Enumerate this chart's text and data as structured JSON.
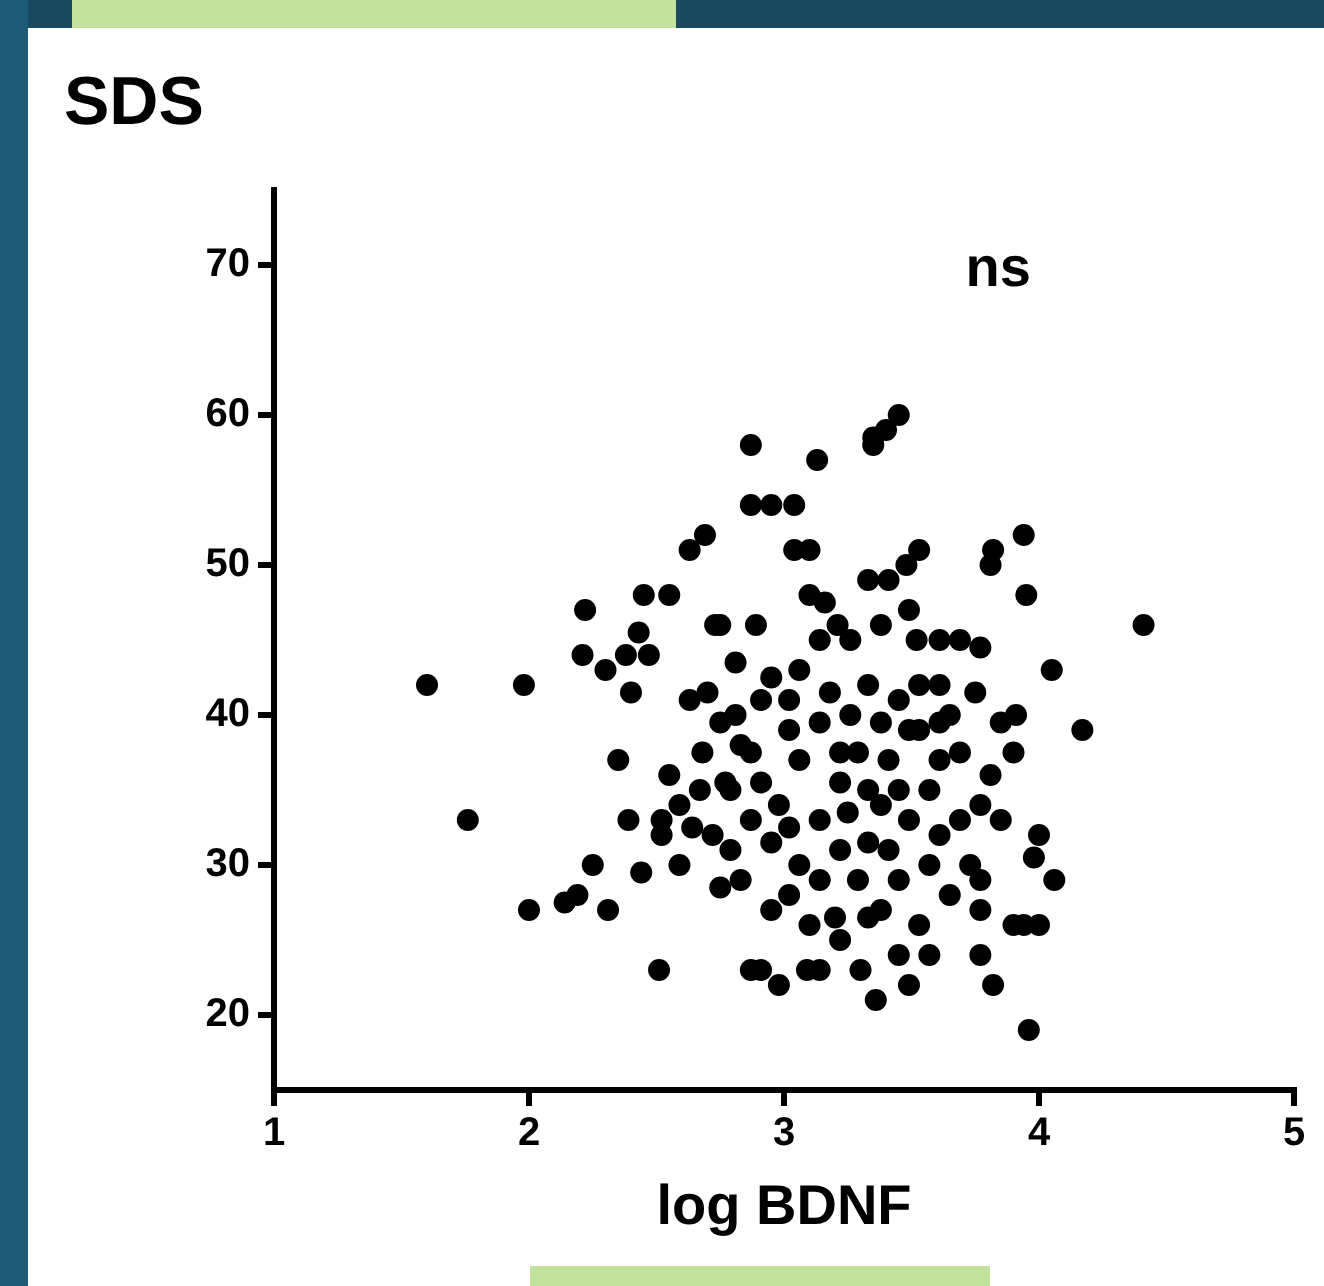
{
  "chart_data": {
    "type": "scatter",
    "ylabel": "SDS",
    "xlabel": "log BDNF",
    "xlim": [
      1,
      5
    ],
    "xticks": [
      1,
      2,
      3,
      4,
      5
    ],
    "ylim": [
      15,
      75
    ],
    "yticks": [
      20,
      30,
      40,
      50,
      60,
      70
    ],
    "annotations": [
      "ns"
    ],
    "marker": "circle",
    "grid": false,
    "legend": false,
    "series": [
      {
        "color": "#000000",
        "x": [
          1.6,
          1.76,
          1.98,
          2.0,
          2.14,
          2.19,
          2.25,
          2.31,
          2.22,
          2.21,
          2.3,
          2.38,
          2.47,
          2.43,
          2.4,
          2.35,
          2.39,
          2.45,
          2.55,
          2.63,
          2.69,
          2.73,
          2.81,
          2.87,
          2.95,
          2.87,
          3.04,
          3.13,
          3.1,
          3.04,
          3.35,
          3.4,
          3.45,
          3.35,
          3.1,
          3.33,
          3.41,
          3.53,
          3.48,
          3.82,
          3.94,
          3.81,
          3.95,
          4.41,
          4.05,
          4.17,
          3.91,
          3.9,
          4.0,
          3.98,
          4.06,
          4.0,
          3.96,
          3.94,
          3.9,
          3.82,
          3.77,
          3.77,
          3.36,
          3.3,
          3.2,
          3.09,
          3.14,
          2.98,
          2.87,
          2.91,
          2.51,
          2.44,
          2.52,
          2.52,
          2.59,
          2.64,
          2.72,
          2.67,
          2.77,
          2.55,
          2.59,
          2.68,
          2.63,
          2.7,
          2.81,
          2.89,
          2.75,
          2.95,
          3.02,
          3.06,
          3.14,
          3.21,
          3.16,
          3.26,
          3.33,
          3.38,
          3.49,
          3.52,
          3.61,
          3.69,
          3.77,
          3.75,
          3.65,
          3.81,
          3.77,
          3.69,
          3.85,
          3.61,
          3.57,
          3.53,
          3.45,
          3.41,
          3.49,
          3.38,
          3.29,
          3.22,
          3.14,
          3.06,
          2.98,
          2.91,
          2.87,
          2.83,
          2.95,
          3.06,
          3.02,
          3.14,
          3.22,
          3.29,
          3.38,
          3.45,
          3.57,
          3.65,
          3.53,
          3.45,
          3.57,
          3.49,
          3.22,
          3.1,
          2.95,
          2.83,
          2.75,
          2.79,
          3.25,
          3.33,
          3.41,
          3.61,
          3.73,
          3.38,
          3.26,
          3.18,
          3.53,
          3.61,
          3.69,
          3.49,
          3.02,
          2.91,
          2.75,
          2.87,
          3.22,
          3.33,
          3.45,
          3.14,
          3.02,
          2.79,
          3.61,
          3.85,
          3.77,
          3.33
        ],
        "values": [
          42,
          33,
          42,
          27,
          27.5,
          28,
          30,
          27,
          47,
          44,
          43,
          44,
          44,
          45.5,
          41.5,
          37,
          33,
          48,
          48,
          51,
          52,
          46,
          40,
          54,
          54,
          58,
          54,
          57,
          51,
          51,
          58.5,
          59,
          60,
          58,
          48,
          49,
          49,
          51,
          50,
          51,
          52,
          50,
          48,
          46,
          43,
          39,
          40,
          37.5,
          32,
          30.5,
          29,
          26,
          19,
          26,
          26,
          22,
          24,
          27,
          21,
          23,
          26.5,
          23,
          23,
          22,
          23,
          23,
          23,
          29.5,
          32,
          33,
          30,
          32.5,
          32,
          35,
          35.5,
          36,
          34,
          37.5,
          41,
          41.5,
          43.5,
          46,
          46,
          42.5,
          41,
          43,
          45,
          46,
          47.5,
          45,
          42,
          46,
          47,
          45,
          45,
          45,
          44.5,
          41.5,
          40,
          36,
          34,
          33,
          39.5,
          37,
          35,
          39,
          41,
          37,
          33,
          34,
          37.5,
          35.5,
          39.5,
          37,
          34,
          35.5,
          33,
          38,
          31.5,
          30,
          28,
          29,
          31,
          29,
          27,
          29,
          30,
          28,
          26,
          24,
          24,
          22,
          25,
          26,
          27,
          29,
          28.5,
          31,
          33.5,
          31.5,
          31,
          32,
          30,
          39.5,
          40,
          41.5,
          42,
          42,
          37.5,
          39,
          39,
          41,
          39.5,
          37.5,
          37.5,
          35,
          35,
          33,
          32.5,
          35,
          39.5,
          33,
          29,
          26.5
        ]
      }
    ]
  }
}
